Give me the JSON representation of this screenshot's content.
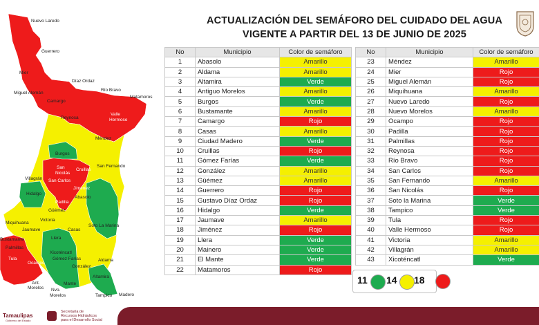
{
  "header": {
    "title_line1": "ACTUALIZACIÓN DEL SEMÁFORO DEL CUIDADO DEL AGUA",
    "title_line2": "VIGENTE A PARTIR DEL 13 DE JUNIO DE 2025"
  },
  "table": {
    "headers": {
      "no": "No",
      "municipio": "Municipio",
      "color": "Color de semáforo"
    },
    "rows_left": [
      {
        "no": "1",
        "municipio": "Abasolo",
        "color": "Amarillo"
      },
      {
        "no": "2",
        "municipio": "Aldama",
        "color": "Amarillo"
      },
      {
        "no": "3",
        "municipio": "Altamira",
        "color": "Verde"
      },
      {
        "no": "4",
        "municipio": "Antiguo Morelos",
        "color": "Amarillo"
      },
      {
        "no": "5",
        "municipio": "Burgos",
        "color": "Verde"
      },
      {
        "no": "6",
        "municipio": "Bustamante",
        "color": "Amarillo"
      },
      {
        "no": "7",
        "municipio": "Camargo",
        "color": "Rojo"
      },
      {
        "no": "8",
        "municipio": "Casas",
        "color": "Amarillo"
      },
      {
        "no": "9",
        "municipio": "Ciudad Madero",
        "color": "Verde"
      },
      {
        "no": "10",
        "municipio": "Cruillas",
        "color": "Rojo"
      },
      {
        "no": "11",
        "municipio": "Gómez Farías",
        "color": "Verde"
      },
      {
        "no": "12",
        "municipio": "González",
        "color": "Amarillo"
      },
      {
        "no": "13",
        "municipio": "Güémez",
        "color": "Amarillo"
      },
      {
        "no": "14",
        "municipio": "Guerrero",
        "color": "Rojo"
      },
      {
        "no": "15",
        "municipio": "Gustavo Díaz Ordaz",
        "color": "Rojo"
      },
      {
        "no": "16",
        "municipio": "Hidalgo",
        "color": "Verde"
      },
      {
        "no": "17",
        "municipio": "Jaumave",
        "color": "Amarillo"
      },
      {
        "no": "18",
        "municipio": "Jiménez",
        "color": "Rojo"
      },
      {
        "no": "19",
        "municipio": "Llera",
        "color": "Verde"
      },
      {
        "no": "20",
        "municipio": "Mainero",
        "color": "Verde"
      },
      {
        "no": "21",
        "municipio": "El Mante",
        "color": "Verde"
      },
      {
        "no": "22",
        "municipio": "Matamoros",
        "color": "Rojo"
      }
    ],
    "rows_right": [
      {
        "no": "23",
        "municipio": "Méndez",
        "color": "Amarillo"
      },
      {
        "no": "24",
        "municipio": "Mier",
        "color": "Rojo"
      },
      {
        "no": "25",
        "municipio": "Miguel Alemán",
        "color": "Rojo"
      },
      {
        "no": "26",
        "municipio": "Miquihuana",
        "color": "Amarillo"
      },
      {
        "no": "27",
        "municipio": "Nuevo Laredo",
        "color": "Rojo"
      },
      {
        "no": "28",
        "municipio": "Nuevo Morelos",
        "color": "Amarillo"
      },
      {
        "no": "29",
        "municipio": "Ocampo",
        "color": "Rojo"
      },
      {
        "no": "30",
        "municipio": "Padilla",
        "color": "Rojo"
      },
      {
        "no": "31",
        "municipio": "Palmillas",
        "color": "Rojo"
      },
      {
        "no": "32",
        "municipio": "Reynosa",
        "color": "Rojo"
      },
      {
        "no": "33",
        "municipio": "Río Bravo",
        "color": "Rojo"
      },
      {
        "no": "34",
        "municipio": "San Carlos",
        "color": "Rojo"
      },
      {
        "no": "35",
        "municipio": "San Fernando",
        "color": "Amarillo"
      },
      {
        "no": "36",
        "municipio": "San Nicolás",
        "color": "Rojo"
      },
      {
        "no": "37",
        "municipio": "Soto la Marina",
        "color": "Verde"
      },
      {
        "no": "38",
        "municipio": "Tampico",
        "color": "Verde"
      },
      {
        "no": "39",
        "municipio": "Tula",
        "color": "Rojo"
      },
      {
        "no": "40",
        "municipio": "Valle Hermoso",
        "color": "Rojo"
      },
      {
        "no": "41",
        "municipio": "Victoria",
        "color": "Amarillo"
      },
      {
        "no": "42",
        "municipio": "Villagrán",
        "color": "Amarillo"
      },
      {
        "no": "43",
        "municipio": "Xicoténcatl",
        "color": "Verde"
      }
    ]
  },
  "legend": {
    "green_count": "11",
    "yellow_count": "14",
    "red_count": "18",
    "green": "#1eab4f",
    "yellow": "#f5f000",
    "red": "#ee1b1b"
  },
  "map_labels": [
    {
      "text": "Nuevo Laredo",
      "dark": true
    },
    {
      "text": "Guerrero",
      "dark": true
    },
    {
      "text": "Mier",
      "dark": true
    },
    {
      "text": "Díaz Ordaz",
      "dark": true
    },
    {
      "text": "Miguel Alemán",
      "dark": true
    },
    {
      "text": "Río Bravo",
      "dark": true
    },
    {
      "text": "Matamoros",
      "dark": true
    },
    {
      "text": "Camargo",
      "dark": true
    },
    {
      "text": "Valle",
      "dark": false
    },
    {
      "text": "Hermoso",
      "dark": false
    },
    {
      "text": "Reynosa",
      "dark": true
    },
    {
      "text": "Méndez",
      "dark": true
    },
    {
      "text": "Burgos",
      "dark": true
    },
    {
      "text": "San",
      "dark": false
    },
    {
      "text": "Nicolás",
      "dark": false
    },
    {
      "text": "Cruillas",
      "dark": false
    },
    {
      "text": "San Fernando",
      "dark": true
    },
    {
      "text": "Villagrán",
      "dark": true
    },
    {
      "text": "San Carlos",
      "dark": false
    },
    {
      "text": "Jiménez",
      "dark": false
    },
    {
      "text": "Hidalgo",
      "dark": true
    },
    {
      "text": "Abasolo",
      "dark": true
    },
    {
      "text": "Padilla",
      "dark": false
    },
    {
      "text": "Güémez",
      "dark": true
    },
    {
      "text": "Miquihuana",
      "dark": true
    },
    {
      "text": "Victoria",
      "dark": true
    },
    {
      "text": "Soto La Marina",
      "dark": true
    },
    {
      "text": "Jaumave",
      "dark": true
    },
    {
      "text": "Casas",
      "dark": true
    },
    {
      "text": "Bustamante",
      "dark": true
    },
    {
      "text": "Llera",
      "dark": true
    },
    {
      "text": "Palmillas",
      "dark": true
    },
    {
      "text": "Xicoténcatl",
      "dark": true
    },
    {
      "text": "Tula",
      "dark": false
    },
    {
      "text": "Ocampo",
      "dark": false
    },
    {
      "text": "Gómez Farías",
      "dark": true
    },
    {
      "text": "González",
      "dark": true
    },
    {
      "text": "Aldama",
      "dark": true
    },
    {
      "text": "Altamira",
      "dark": true
    },
    {
      "text": "Mante",
      "dark": true
    },
    {
      "text": "Ant.",
      "dark": true
    },
    {
      "text": "Morelos",
      "dark": true
    },
    {
      "text": "Nvo.",
      "dark": true
    },
    {
      "text": "Morelos",
      "dark": true
    },
    {
      "text": "Tampico",
      "dark": true
    },
    {
      "text": "Madero",
      "dark": true
    }
  ],
  "footer": {
    "logo_text": "Tamaulipas",
    "logo_sub": "Gobierno del Estado",
    "agency_line1": "Secretaría de",
    "agency_line2": "Recursos Hidráulicos",
    "agency_line3": "para el Desarrollo Social"
  }
}
